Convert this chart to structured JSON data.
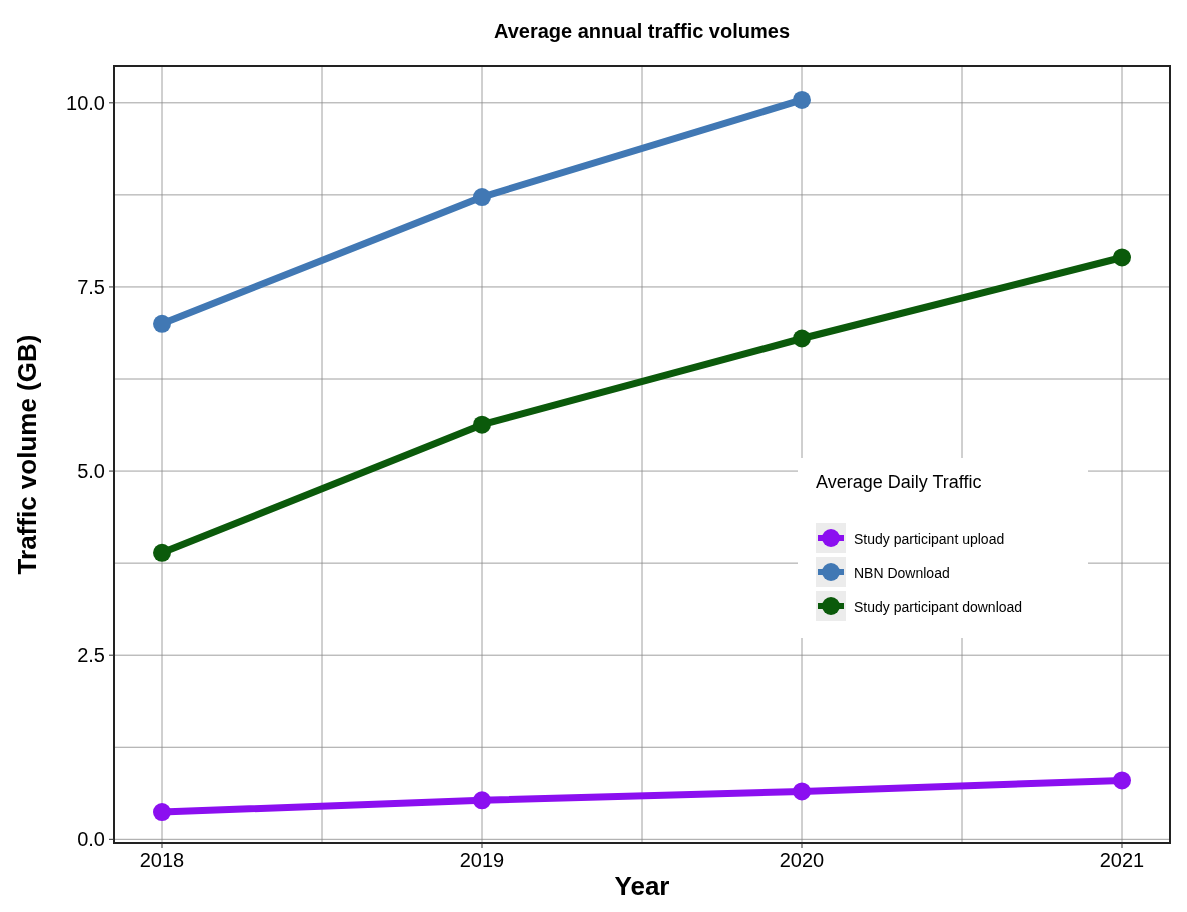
{
  "chart_data": {
    "type": "line",
    "title": "Average annual traffic volumes",
    "xlabel": "Year",
    "ylabel": "Traffic volume (GB)",
    "legend_title": "Average Daily Traffic",
    "x": [
      2018,
      2019,
      2020,
      2021
    ],
    "series": [
      {
        "name": "Study participant upload",
        "color": "#8b0ff0",
        "values": [
          0.37,
          0.53,
          0.65,
          0.8
        ]
      },
      {
        "name": "NBN Download",
        "color": "#4178b4",
        "values": [
          7.0,
          8.72,
          10.04,
          null
        ]
      },
      {
        "name": "Study participant download",
        "color": "#0b5a0b",
        "values": [
          3.89,
          5.63,
          6.8,
          7.9
        ]
      }
    ],
    "xlim": [
      2017.85,
      2021.15
    ],
    "xticks": [
      2018,
      2019,
      2020,
      2021
    ],
    "ylim": [
      -0.05,
      10.5
    ],
    "yticks": [
      {
        "value": 0,
        "label": "0.0"
      },
      {
        "value": 2.5,
        "label": "2.5"
      },
      {
        "value": 5,
        "label": "5.0"
      },
      {
        "value": 7.5,
        "label": "7.5"
      },
      {
        "value": 10,
        "label": "10.0"
      }
    ],
    "grid": true,
    "legend": "right",
    "marker": "circle",
    "line_style": "solid"
  }
}
